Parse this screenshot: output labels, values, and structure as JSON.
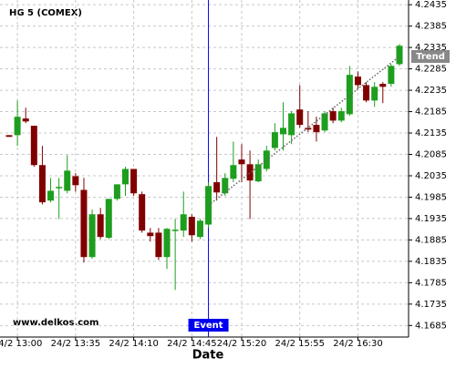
{
  "chart_data": {
    "type": "candlestick",
    "title": "HG 5 (COMEX)",
    "x_label": "Date",
    "watermark": "www.delkos.com",
    "categories": [
      null,
      "24/2 13:00",
      null,
      null,
      null,
      null,
      null,
      null,
      "24/2 13:35",
      null,
      null,
      null,
      null,
      null,
      null,
      "24/2 14:10",
      null,
      null,
      null,
      null,
      null,
      null,
      "24/2 14:45",
      null,
      null,
      null,
      null,
      null,
      "24/2 15:20",
      null,
      null,
      null,
      null,
      null,
      null,
      "24/2 15:55",
      null,
      null,
      null,
      null,
      null,
      null,
      "24/2 16:30",
      null,
      null,
      null,
      null,
      null
    ],
    "open": [
      4.213,
      4.213,
      4.2169,
      4.2152,
      4.206,
      4.1977,
      4.2009,
      4.2,
      4.2034,
      4.2002,
      4.1845,
      4.1945,
      4.189,
      4.1981,
      4.2015,
      4.2051,
      4.1992,
      4.1902,
      4.1902,
      4.1845,
      4.1907,
      4.1907,
      4.1939,
      4.1892,
      4.1921,
      4.202,
      4.1994,
      4.2028,
      4.2073,
      4.2062,
      4.2022,
      4.2051,
      4.21,
      4.2132,
      4.213,
      4.219,
      4.2147,
      4.2154,
      4.2141,
      4.2186,
      4.2164,
      4.2179,
      4.2267,
      4.2247,
      4.2211,
      4.225,
      4.225,
      4.2296
    ],
    "high": [
      4.213,
      4.2211,
      4.2194,
      4.2152,
      4.2105,
      4.203,
      4.203,
      4.2083,
      4.2041,
      4.203,
      4.1956,
      4.196,
      4.1981,
      4.2015,
      4.2056,
      4.2051,
      4.1998,
      4.1913,
      4.1913,
      4.1913,
      4.1934,
      4.1998,
      4.1945,
      4.1934,
      4.202,
      4.2126,
      4.2041,
      4.2115,
      4.2109,
      4.2094,
      4.2073,
      4.2105,
      4.2158,
      4.2207,
      4.2186,
      4.2247,
      4.2186,
      4.2173,
      4.2186,
      4.2194,
      4.2194,
      4.2292,
      4.2279,
      4.2254,
      4.2254,
      4.2254,
      4.2296,
      4.2343
    ],
    "low": [
      4.2126,
      4.2105,
      4.2158,
      4.2056,
      4.1968,
      4.1973,
      4.1934,
      4.1994,
      4.1998,
      4.1832,
      4.1841,
      4.1887,
      4.1887,
      4.1977,
      4.1988,
      4.1988,
      4.1902,
      4.1881,
      4.1838,
      4.1817,
      4.1768,
      4.1892,
      4.1881,
      4.1887,
      4.1913,
      4.1977,
      4.1988,
      4.202,
      4.202,
      4.1934,
      4.202,
      4.2045,
      4.2094,
      4.2094,
      4.2109,
      4.2147,
      4.2137,
      4.2115,
      4.2137,
      4.2158,
      4.216,
      4.2175,
      4.2239,
      4.2207,
      4.2196,
      4.2205,
      4.2243,
      4.2292
    ],
    "close": [
      4.2126,
      4.2173,
      4.2162,
      4.206,
      4.1973,
      4.2,
      4.2009,
      4.2047,
      4.2013,
      4.1845,
      4.1945,
      4.1892,
      4.1981,
      4.2015,
      4.2051,
      4.1994,
      4.1907,
      4.1894,
      4.1845,
      4.1911,
      4.1909,
      4.1945,
      4.1896,
      4.193,
      4.2011,
      4.1996,
      4.203,
      4.206,
      4.2062,
      4.2024,
      4.2062,
      4.2094,
      4.2137,
      4.2147,
      4.2181,
      4.2154,
      4.2143,
      4.2137,
      4.2181,
      4.2164,
      4.2186,
      4.2271,
      4.2247,
      4.2211,
      4.2243,
      4.2243,
      4.2292,
      4.2339
    ],
    "up_color": "#1e9e1e",
    "down_color": "#800000",
    "ylim": [
      4.1658,
      4.2446
    ],
    "yticks": [
      4.1685,
      4.1735,
      4.1785,
      4.1835,
      4.1885,
      4.1935,
      4.1985,
      4.2035,
      4.2085,
      4.2135,
      4.2185,
      4.2235,
      4.2285,
      4.2335,
      4.2385,
      4.2435
    ],
    "grid": true,
    "event": {
      "label": "Event",
      "index": 24,
      "color": "#0000ee"
    },
    "trend": {
      "label": "Trend",
      "x": [
        24,
        47
      ],
      "y": [
        4.1966,
        4.2314
      ]
    }
  }
}
